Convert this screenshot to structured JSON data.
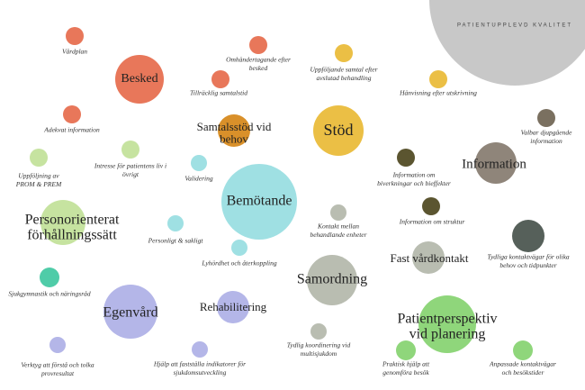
{
  "header": {
    "title": "PATIENTUPPLEVD KVALITET"
  },
  "nodes": [
    {
      "label": [
        "Vårdplan"
      ]
    },
    {
      "label": [
        "Besked"
      ]
    },
    {
      "label": [
        "Omhändertagande efter",
        "besked"
      ]
    },
    {
      "label": [
        "Tillräcklig samtalstid"
      ]
    },
    {
      "label": [
        "Adekvat information"
      ]
    },
    {
      "label": [
        "Samtalsstöd vid",
        "behov"
      ]
    },
    {
      "label": [
        "Uppföljande samtal efter",
        "avslutad behandling"
      ]
    },
    {
      "label": [
        "Stöd"
      ]
    },
    {
      "label": [
        "Hänvisning efter utskrivning"
      ]
    },
    {
      "label": [
        "Valbar djupgående",
        "information"
      ]
    },
    {
      "label": [
        "Information"
      ]
    },
    {
      "label": [
        "Information om",
        "biverkningar och bieffekter"
      ]
    },
    {
      "label": [
        "Information om struktur"
      ]
    },
    {
      "label": [
        "Uppföljning av",
        "PROM & PREM"
      ]
    },
    {
      "label": [
        "Intresse för patientens liv i",
        "övrigt"
      ]
    },
    {
      "label": [
        "Validering"
      ]
    },
    {
      "label": [
        "Bemötande"
      ]
    },
    {
      "label": [
        "Personorienterat",
        "förhållningssätt"
      ]
    },
    {
      "label": [
        "Personligt & sakligt"
      ]
    },
    {
      "label": [
        "Lyhördhet och återkoppling"
      ]
    },
    {
      "label": [
        "Kontakt mellan",
        "behandlande enheter"
      ]
    },
    {
      "label": [
        "Samordning"
      ]
    },
    {
      "label": [
        "Fast vårdkontakt"
      ]
    },
    {
      "label": [
        "Tydliga kontaktvägar för olika",
        "behov och tidpunkter"
      ]
    },
    {
      "label": [
        "Sjukgymnastik och näringsråd"
      ]
    },
    {
      "label": [
        "Egenvård"
      ]
    },
    {
      "label": [
        "Rehabilitering"
      ]
    },
    {
      "label": [
        "Verktyg att förstå och tolka",
        "provresultat"
      ]
    },
    {
      "label": [
        "Hjälp att fastställa indikatorer för",
        "sjukdomsutveckling"
      ]
    },
    {
      "label": [
        "Tydlig koordinering vid",
        "multisjukdom"
      ]
    },
    {
      "label": [
        "Patientperspektiv",
        "vid planering"
      ]
    },
    {
      "label": [
        "Praktisk hjälp att",
        "genomföra besök"
      ]
    },
    {
      "label": [
        "Anpassade kontaktvägar",
        "och besökstider"
      ]
    }
  ]
}
